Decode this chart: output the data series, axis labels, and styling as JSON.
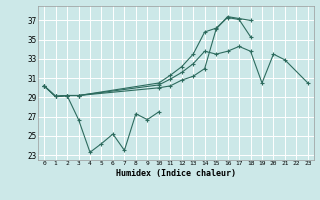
{
  "xlabel": "Humidex (Indice chaleur)",
  "background_color": "#cce8e8",
  "grid_color": "#b8d8d8",
  "line_color": "#2d6b5e",
  "xlim": [
    -0.5,
    23.5
  ],
  "ylim": [
    22.5,
    38.5
  ],
  "yticks": [
    23,
    25,
    27,
    29,
    31,
    33,
    35,
    37
  ],
  "xticks": [
    0,
    1,
    2,
    3,
    4,
    5,
    6,
    7,
    8,
    9,
    10,
    11,
    12,
    13,
    14,
    15,
    16,
    17,
    18,
    19,
    20,
    21,
    22,
    23
  ],
  "series": [
    {
      "x": [
        0,
        1,
        2,
        3,
        10,
        11,
        12,
        13,
        14,
        15,
        16,
        17,
        18,
        19,
        20,
        21,
        23
      ],
      "y": [
        30.2,
        29.1,
        29.2,
        29.2,
        30.3,
        30.9,
        31.6,
        32.5,
        33.8,
        33.5,
        33.8,
        34.3,
        33.8,
        30.5,
        33.5,
        32.9,
        30.5
      ]
    },
    {
      "x": [
        0,
        1,
        2,
        3,
        10,
        11,
        12,
        13,
        14,
        15,
        16,
        17,
        18
      ],
      "y": [
        30.2,
        29.1,
        29.2,
        29.2,
        30.5,
        31.3,
        32.2,
        33.5,
        35.8,
        36.2,
        37.3,
        37.1,
        35.3
      ]
    },
    {
      "x": [
        0,
        1,
        2,
        3,
        10,
        11,
        12,
        13,
        14,
        15,
        16,
        17,
        18
      ],
      "y": [
        30.2,
        29.1,
        29.2,
        29.2,
        30.0,
        30.2,
        30.8,
        31.2,
        32.0,
        36.1,
        37.4,
        37.2,
        37.0
      ]
    },
    {
      "x": [
        0,
        1,
        2,
        3,
        4,
        5,
        6,
        7,
        8,
        9,
        10
      ],
      "y": [
        30.2,
        29.1,
        29.2,
        26.7,
        23.3,
        24.2,
        25.2,
        23.5,
        27.3,
        26.7,
        27.5
      ]
    }
  ]
}
